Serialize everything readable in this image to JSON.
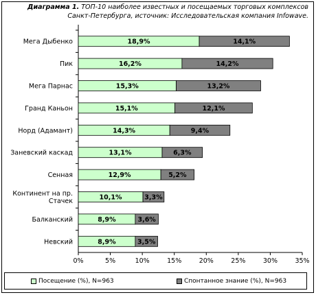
{
  "title_bold": "Диаграмма 1.",
  "title_line1": " ТОП-10 наиболее известных и посещаемых торговых комплексов",
  "title_line2": "Санкт-Петербурга, источник: Исследовательская компания Infowave.",
  "colors": {
    "visits": "#ccffcc",
    "awareness": "#808080"
  },
  "chart_data": {
    "type": "bar",
    "orientation": "horizontal",
    "stacked": true,
    "categories": [
      "Мега Дыбенко",
      "Пик",
      "Мега Парнас",
      "Гранд Каньон",
      "Норд (Адамант)",
      "Заневский каскад",
      "Сенная",
      "Континент на пр. Стачек",
      "Балканский",
      "Невский"
    ],
    "category_lines": [
      [
        "Мега Дыбенко"
      ],
      [
        "Пик"
      ],
      [
        "Мега Парнас"
      ],
      [
        "Гранд Каньон"
      ],
      [
        "Норд (Адамант)"
      ],
      [
        "Заневский каскад"
      ],
      [
        "Сенная"
      ],
      [
        "Континент на пр.",
        "Стачек"
      ],
      [
        "Балканский"
      ],
      [
        "Невский"
      ]
    ],
    "series": [
      {
        "name": "Посещение (%), N=963",
        "values": [
          18.9,
          16.2,
          15.3,
          15.1,
          14.3,
          13.1,
          12.9,
          10.1,
          8.9,
          8.9
        ],
        "labels": [
          "18,9%",
          "16,2%",
          "15,3%",
          "15,1%",
          "14,3%",
          "13,1%",
          "12,9%",
          "10,1%",
          "8,9%",
          "8,9%"
        ]
      },
      {
        "name": "Спонтанное знание (%), N=963",
        "values": [
          14.1,
          14.2,
          13.2,
          12.1,
          9.4,
          6.3,
          5.2,
          3.3,
          3.6,
          3.5
        ],
        "labels": [
          "14,1%",
          "14,2%",
          "13,2%",
          "12,1%",
          "9,4%",
          "6,3%",
          "5,2%",
          "3,3%",
          "3,6%",
          "3,5%"
        ]
      }
    ],
    "xlim": [
      0,
      35
    ],
    "xticks": [
      0,
      5,
      10,
      15,
      20,
      25,
      30,
      35
    ],
    "xtick_labels": [
      "0%",
      "5%",
      "10%",
      "15%",
      "20%",
      "25%",
      "30%",
      "35%"
    ],
    "grid": false,
    "legend_position": "bottom"
  }
}
